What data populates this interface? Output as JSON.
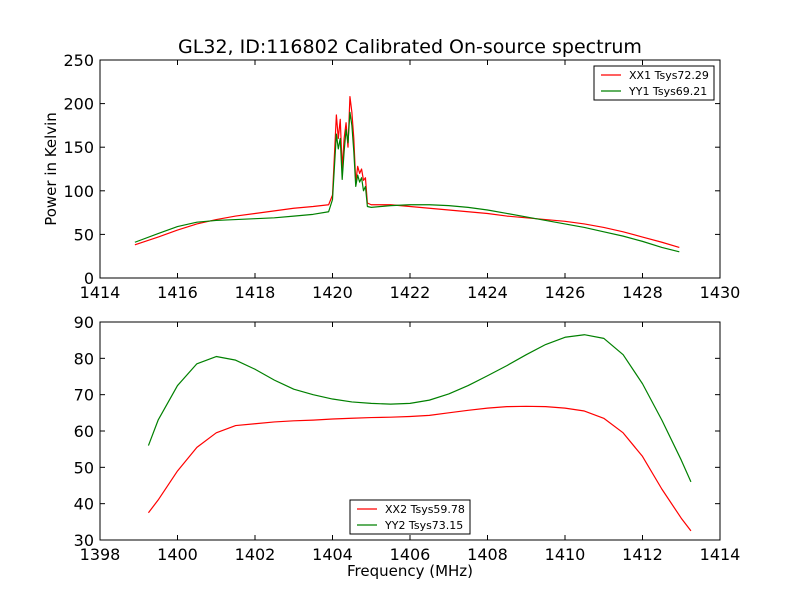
{
  "title": "GL32, ID:116802 Calibrated On-source spectrum",
  "chart_data": [
    {
      "type": "line",
      "ylabel": "Power in Kelvin",
      "xlabel": "",
      "xlim": [
        1414,
        1430
      ],
      "ylim": [
        0,
        250
      ],
      "xticks": [
        "1414",
        "1416",
        "1418",
        "1420",
        "1422",
        "1424",
        "1426",
        "1428",
        "1430"
      ],
      "yticks": [
        "0",
        "50",
        "100",
        "150",
        "200",
        "250"
      ],
      "grid": false,
      "legend_position": "top-right",
      "series": [
        {
          "name": "XX1 Tsys72.29",
          "color": "#ff0000",
          "x": [
            1414.9,
            1415.5,
            1416.0,
            1416.5,
            1417.0,
            1417.5,
            1418.0,
            1418.5,
            1419.0,
            1419.5,
            1419.9,
            1420.0,
            1420.1,
            1420.15,
            1420.2,
            1420.25,
            1420.3,
            1420.35,
            1420.4,
            1420.45,
            1420.5,
            1420.55,
            1420.6,
            1420.65,
            1420.7,
            1420.75,
            1420.8,
            1420.85,
            1420.9,
            1421.0,
            1421.5,
            1422.0,
            1422.5,
            1423.0,
            1423.5,
            1424.0,
            1424.5,
            1425.0,
            1425.5,
            1426.0,
            1426.5,
            1427.0,
            1427.5,
            1428.0,
            1428.5,
            1428.95
          ],
          "y": [
            38,
            47,
            55,
            62,
            67,
            71,
            74,
            77,
            80,
            82,
            84,
            95,
            187,
            160,
            182,
            125,
            160,
            178,
            150,
            208,
            190,
            160,
            110,
            128,
            120,
            125,
            112,
            115,
            86,
            84,
            84,
            82,
            80,
            78,
            76,
            74,
            71,
            69,
            67,
            65,
            62,
            58,
            53,
            47,
            41,
            35
          ]
        },
        {
          "name": "YY1 Tsys69.21",
          "color": "#008000",
          "x": [
            1414.9,
            1415.5,
            1416.0,
            1416.5,
            1417.0,
            1417.5,
            1418.0,
            1418.5,
            1419.0,
            1419.5,
            1419.9,
            1420.0,
            1420.1,
            1420.15,
            1420.2,
            1420.25,
            1420.3,
            1420.35,
            1420.4,
            1420.45,
            1420.5,
            1420.55,
            1420.6,
            1420.65,
            1420.7,
            1420.75,
            1420.8,
            1420.85,
            1420.9,
            1421.0,
            1421.5,
            1422.0,
            1422.5,
            1423.0,
            1423.5,
            1424.0,
            1424.5,
            1425.0,
            1425.5,
            1426.0,
            1426.5,
            1427.0,
            1427.5,
            1428.0,
            1428.5,
            1428.95
          ],
          "y": [
            41,
            51,
            59,
            64,
            66,
            67,
            68,
            69,
            71,
            73,
            76,
            90,
            165,
            148,
            160,
            113,
            145,
            170,
            155,
            190,
            175,
            145,
            105,
            118,
            110,
            115,
            100,
            105,
            82,
            81,
            83,
            84,
            84,
            83,
            81,
            78,
            74,
            70,
            66,
            62,
            58,
            53,
            48,
            42,
            35,
            30
          ]
        }
      ]
    },
    {
      "type": "line",
      "ylabel": "",
      "xlabel": "Frequency (MHz)",
      "xlim": [
        1398,
        1414
      ],
      "ylim": [
        30,
        90
      ],
      "xticks": [
        "1398",
        "1400",
        "1402",
        "1404",
        "1406",
        "1408",
        "1410",
        "1412",
        "1414"
      ],
      "yticks": [
        "30",
        "40",
        "50",
        "60",
        "70",
        "80",
        "90"
      ],
      "grid": false,
      "legend_position": "bottom-center",
      "series": [
        {
          "name": "XX2 Tsys59.78",
          "color": "#ff0000",
          "x": [
            1399.25,
            1399.5,
            1400.0,
            1400.5,
            1401.0,
            1401.5,
            1402.0,
            1402.5,
            1403.0,
            1403.5,
            1404.0,
            1404.5,
            1405.0,
            1405.5,
            1406.0,
            1406.5,
            1407.0,
            1407.5,
            1408.0,
            1408.5,
            1409.0,
            1409.5,
            1410.0,
            1410.5,
            1411.0,
            1411.5,
            1412.0,
            1412.5,
            1413.0,
            1413.25
          ],
          "y": [
            37.5,
            41,
            49,
            55.5,
            59.5,
            61.5,
            62,
            62.5,
            62.8,
            63,
            63.3,
            63.5,
            63.7,
            63.8,
            64,
            64.3,
            65,
            65.7,
            66.3,
            66.7,
            66.8,
            66.7,
            66.3,
            65.5,
            63.5,
            59.5,
            53,
            44,
            36,
            32.5
          ]
        },
        {
          "name": "YY2 Tsys73.15",
          "color": "#008000",
          "x": [
            1399.25,
            1399.5,
            1400.0,
            1400.5,
            1401.0,
            1401.5,
            1402.0,
            1402.5,
            1403.0,
            1403.5,
            1404.0,
            1404.5,
            1405.0,
            1405.5,
            1406.0,
            1406.5,
            1407.0,
            1407.5,
            1408.0,
            1408.5,
            1409.0,
            1409.5,
            1410.0,
            1410.5,
            1411.0,
            1411.5,
            1412.0,
            1412.5,
            1413.0,
            1413.25
          ],
          "y": [
            56,
            63,
            72.5,
            78.5,
            80.5,
            79.5,
            77,
            74,
            71.5,
            70,
            68.8,
            68,
            67.6,
            67.4,
            67.6,
            68.5,
            70.2,
            72.5,
            75.2,
            78,
            81,
            83.8,
            85.8,
            86.5,
            85.5,
            81,
            73,
            63,
            52,
            46
          ]
        }
      ]
    }
  ]
}
